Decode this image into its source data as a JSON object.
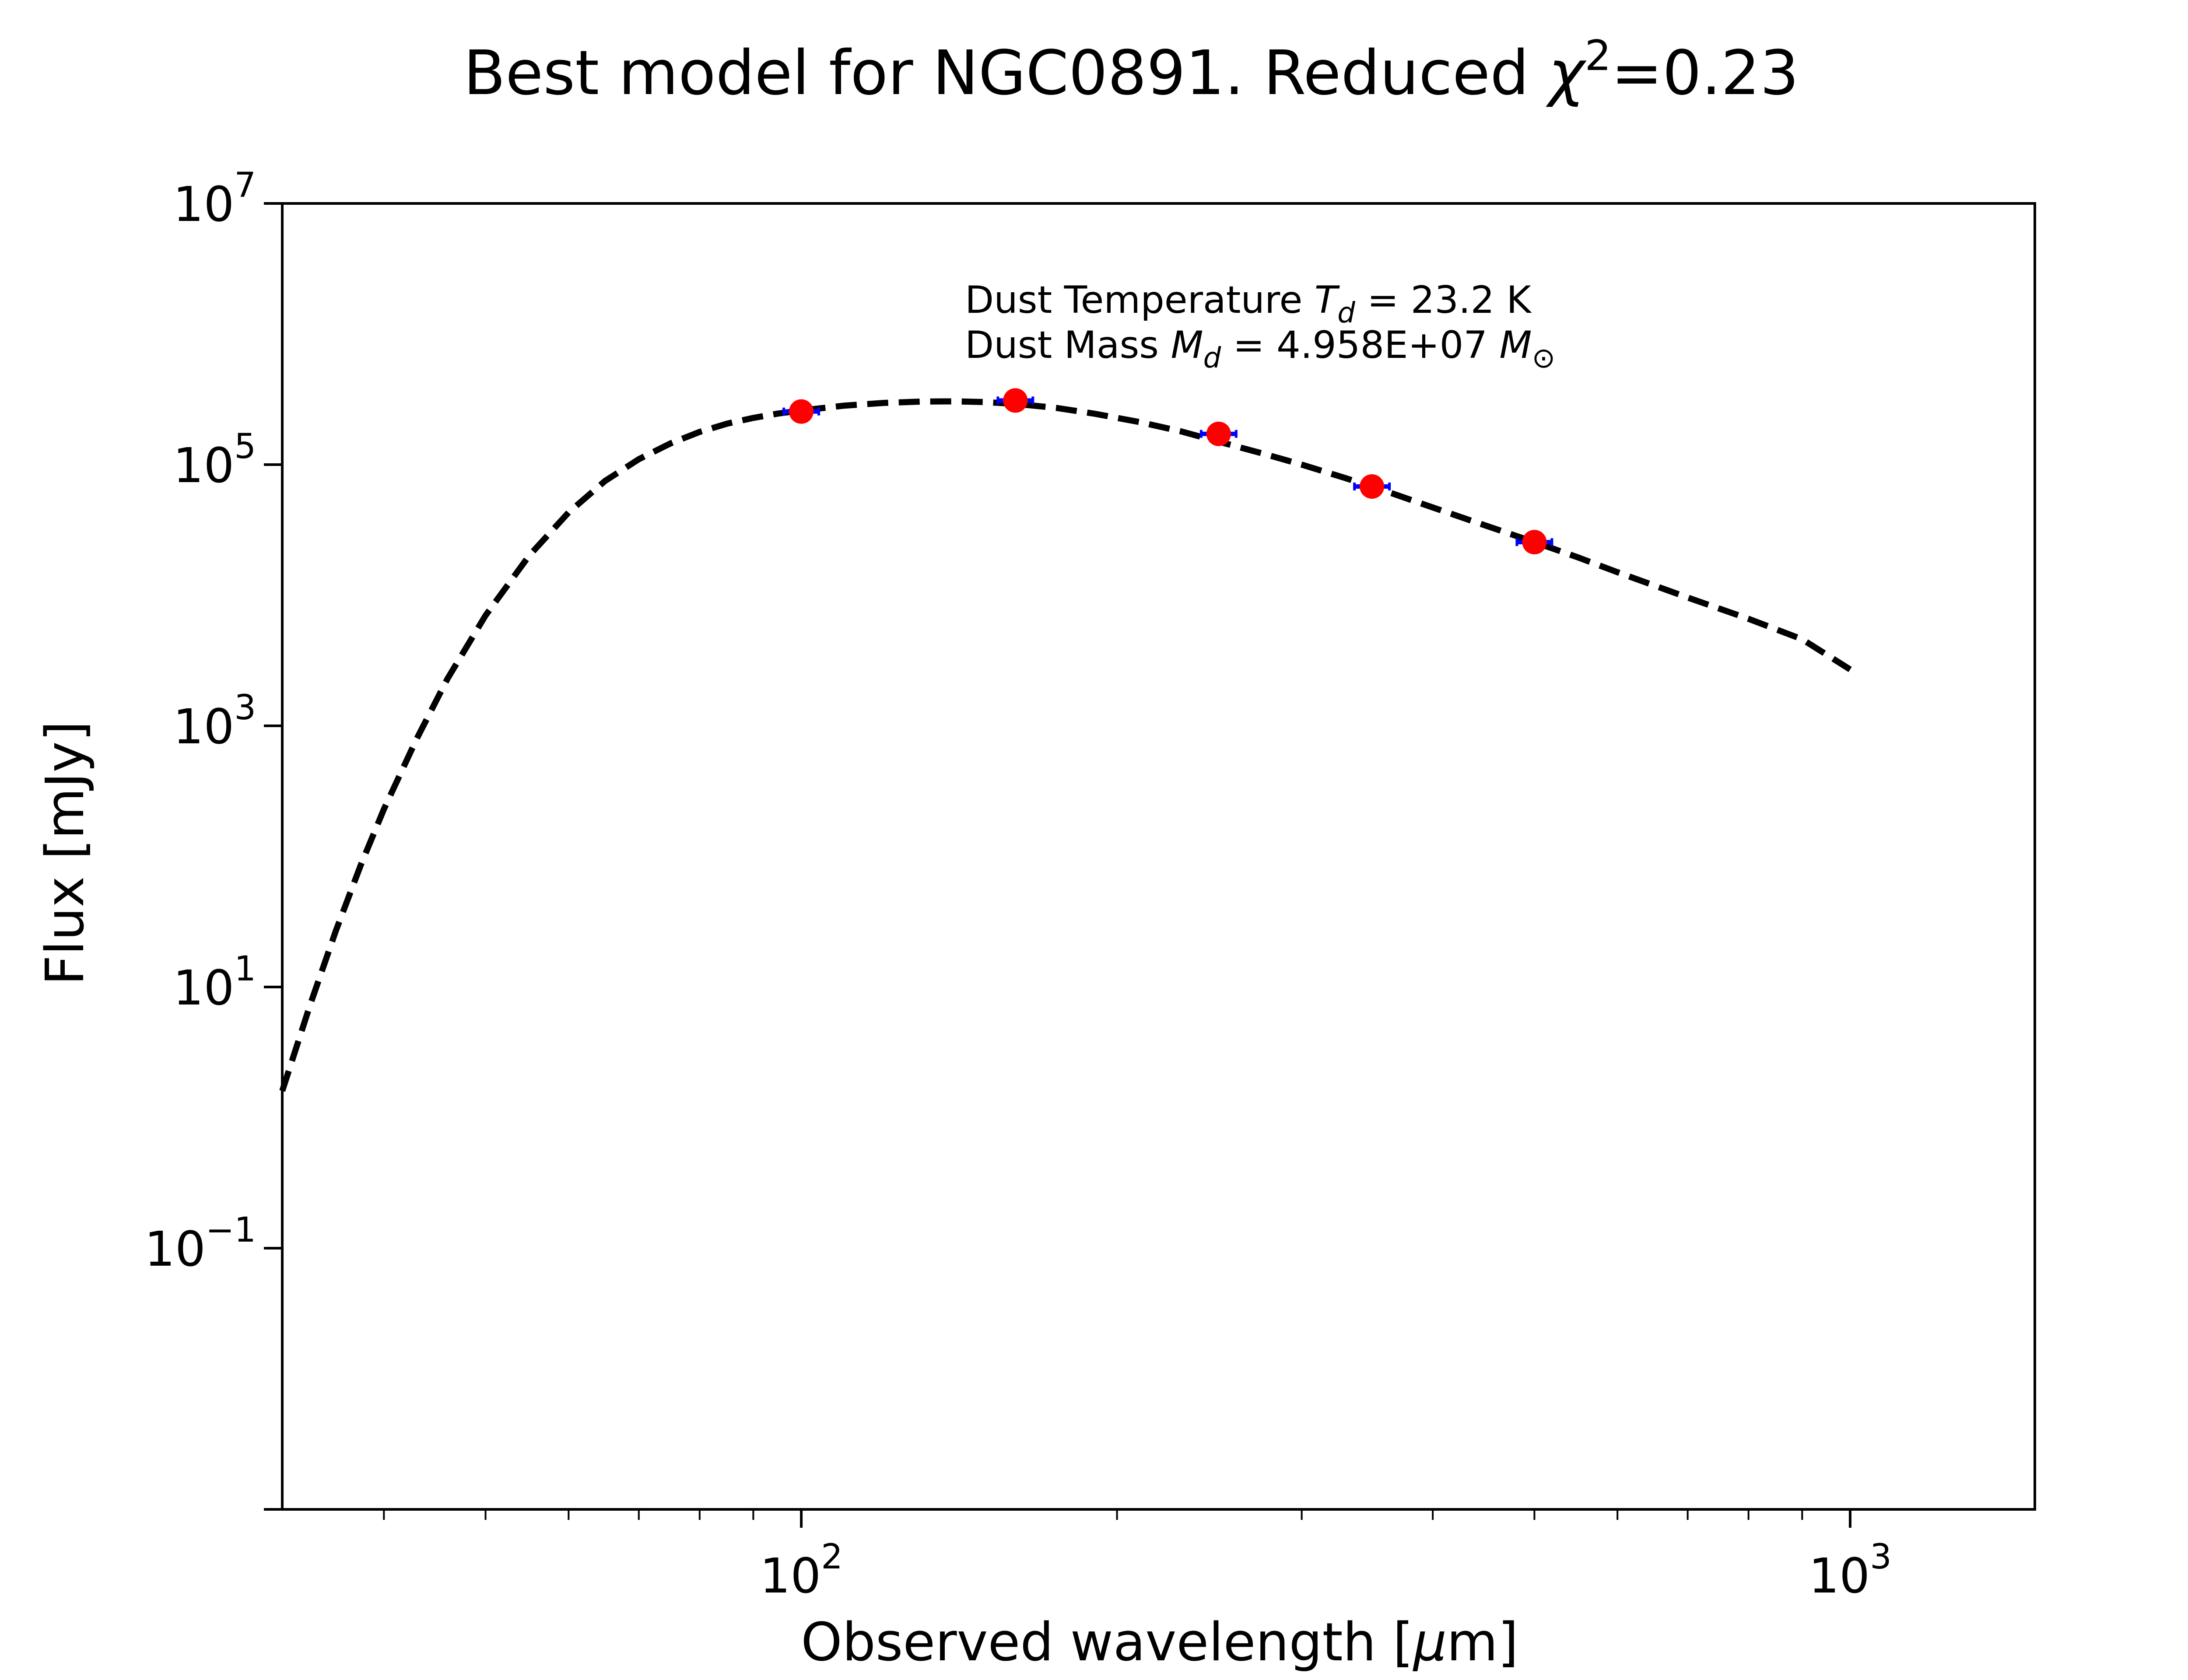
{
  "chart_data": {
    "type": "scatter",
    "title": {
      "prefix": "Best model for NGC0891. Reduced ",
      "symbol": "χ",
      "symbol_sup": "2",
      "value": "=0.23"
    },
    "xlabel": {
      "text": "Observed wavelength [",
      "mu": "μ",
      "unit": "m]"
    },
    "ylabel": "Flux [mJy]",
    "x_scale": "log",
    "y_scale": "log",
    "xlim": [
      32,
      1500
    ],
    "ylim": [
      0.001,
      10000000
    ],
    "x_ticks": [
      {
        "value": 100,
        "base": "10",
        "exp": "2"
      },
      {
        "value": 1000,
        "base": "10",
        "exp": "3"
      }
    ],
    "y_ticks": [
      {
        "value": 0.1,
        "base": "10",
        "exp": "−1"
      },
      {
        "value": 10,
        "base": "10",
        "exp": "1"
      },
      {
        "value": 1000,
        "base": "10",
        "exp": "3"
      },
      {
        "value": 100000,
        "base": "10",
        "exp": "5"
      },
      {
        "value": 10000000,
        "base": "10",
        "exp": "7"
      }
    ],
    "grid": false,
    "series": [
      {
        "kind": "model",
        "style": "dashed",
        "color": "#000000",
        "x": [
          32,
          34,
          36,
          38,
          40,
          43,
          46,
          50,
          55,
          60,
          65,
          70,
          75,
          80,
          85,
          90,
          95,
          100,
          110,
          120,
          130,
          140,
          150,
          160,
          175,
          190,
          210,
          230,
          250,
          275,
          300,
          330,
          360,
          400,
          450,
          500,
          550,
          600,
          700,
          800,
          900,
          1000
        ],
        "y": [
          1.6,
          7.2,
          27,
          85,
          230,
          800,
          2300,
          7000,
          20000,
          43000,
          75000,
          110000,
          145000,
          178000,
          206000,
          228000,
          246000,
          260000,
          283000,
          297000,
          304000,
          305000,
          301000,
          292000,
          272000,
          246000,
          212000,
          180000,
          150000,
          122000,
          100000,
          79000,
          63000,
          47000,
          34000,
          25500,
          19500,
          15000,
          9600,
          6600,
          4600,
          2700
        ]
      },
      {
        "kind": "observed",
        "color": "#ff0000",
        "errorbar_color": "#0000ff",
        "x": [
          100,
          160,
          250,
          350,
          500
        ],
        "y": [
          255000,
          310000,
          172000,
          68000,
          25500
        ]
      }
    ],
    "annotation": {
      "line1": {
        "text": "Dust Temperature ",
        "sym": "T",
        "sub": "d",
        "value": " = 23.2 K"
      },
      "line2": {
        "text": "Dust Mass ",
        "sym": "M",
        "sub": "d",
        "value": " = 4.958E+07 ",
        "unit_sym": "M",
        "unit_sub": "⊙"
      }
    }
  }
}
